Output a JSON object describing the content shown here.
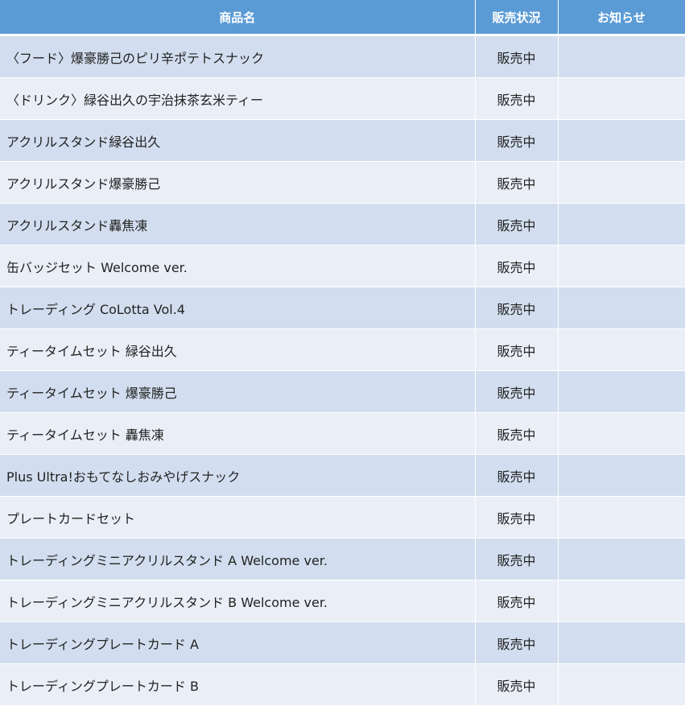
{
  "headers": {
    "name": "商品名",
    "status": "販売状況",
    "notice": "お知らせ"
  },
  "rows": [
    {
      "name": "〈フード〉爆豪勝己のピリ辛ポテトスナック",
      "status": "販売中",
      "notice": ""
    },
    {
      "name": "〈ドリンク〉緑谷出久の宇治抹茶玄米ティー",
      "status": "販売中",
      "notice": ""
    },
    {
      "name": "アクリルスタンド緑谷出久",
      "status": "販売中",
      "notice": ""
    },
    {
      "name": "アクリルスタンド爆豪勝己",
      "status": "販売中",
      "notice": ""
    },
    {
      "name": "アクリルスタンド轟焦凍",
      "status": "販売中",
      "notice": ""
    },
    {
      "name": "缶バッジセット Welcome ver.",
      "status": "販売中",
      "notice": ""
    },
    {
      "name": "トレーディング CoLotta Vol.4",
      "status": "販売中",
      "notice": ""
    },
    {
      "name": "ティータイムセット 緑谷出久",
      "status": "販売中",
      "notice": ""
    },
    {
      "name": "ティータイムセット 爆豪勝己",
      "status": "販売中",
      "notice": ""
    },
    {
      "name": "ティータイムセット 轟焦凍",
      "status": "販売中",
      "notice": ""
    },
    {
      "name": "Plus Ultra!おもてなしおみやげスナック",
      "status": "販売中",
      "notice": ""
    },
    {
      "name": "プレートカードセット",
      "status": "販売中",
      "notice": ""
    },
    {
      "name": "トレーディングミニアクリルスタンド A Welcome ver.",
      "status": "販売中",
      "notice": ""
    },
    {
      "name": "トレーディングミニアクリルスタンド B Welcome ver.",
      "status": "販売中",
      "notice": ""
    },
    {
      "name": "トレーディングプレートカード A",
      "status": "販売中",
      "notice": ""
    },
    {
      "name": "トレーディングプレートカード B",
      "status": "販売中",
      "notice": ""
    }
  ],
  "colors": {
    "header": "#5b9bd5",
    "row_odd": "#d2deef",
    "row_even": "#eaeff7"
  }
}
